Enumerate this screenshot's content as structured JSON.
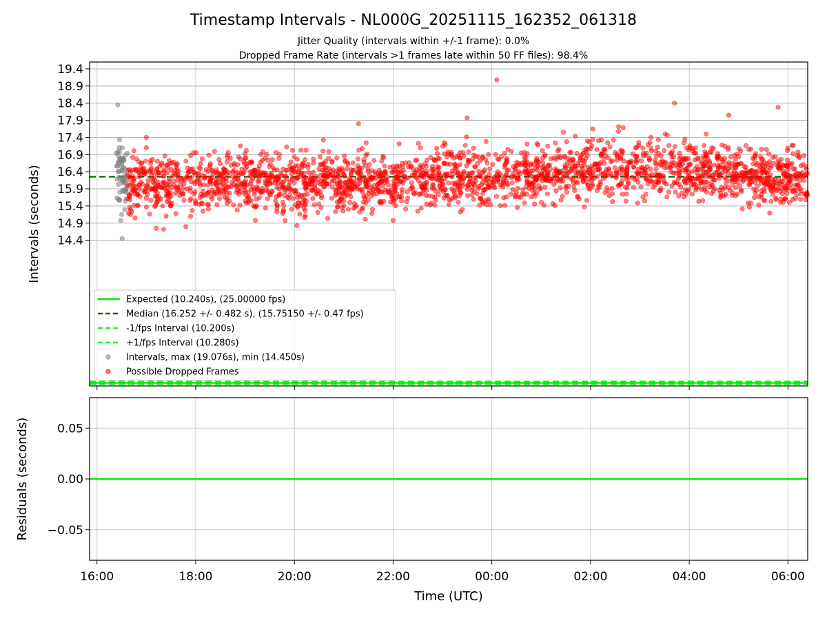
{
  "chart_data": [
    {
      "type": "scatter",
      "title": "Timestamp Intervals - NL000G_20251115_162352_061318",
      "subtitle_lines": [
        "Jitter Quality (intervals within +/-1 frame): 0.0%",
        "Dropped Frame Rate (intervals >1 frames late within 50 FF files): 98.4%"
      ],
      "xlabel": "",
      "ylabel": "Intervals (seconds)",
      "x_unit": "hours since 16:00 UTC",
      "xlim": [
        -0.15,
        14.4
      ],
      "ylim": [
        10.15,
        19.6
      ],
      "yticks": [
        14.4,
        14.9,
        15.4,
        15.9,
        16.4,
        16.9,
        17.4,
        17.9,
        18.4,
        18.9,
        19.4
      ],
      "grid": true,
      "reference_lines": {
        "expected": 10.24,
        "median": 16.252,
        "minus_one_fps": 10.2,
        "plus_one_fps": 10.28
      },
      "series": [
        {
          "name": "Intervals, max (19.076s), min (14.450s)",
          "color": "#808080",
          "x_range": [
            0.38,
            0.62
          ],
          "count": 60,
          "center": 16.3,
          "spread": 0.45,
          "extremes": [
            [
              0.42,
              18.35
            ],
            [
              0.51,
              14.45
            ],
            [
              0.48,
              14.98
            ],
            [
              0.5,
              15.15
            ]
          ]
        },
        {
          "name": "Possible Dropped Frames",
          "color": "#ff0000",
          "x_range": [
            0.62,
            14.4
          ],
          "count": 2400,
          "trend": [
            [
              0.62,
              16.05
            ],
            [
              5.0,
              16.1
            ],
            [
              8.0,
              16.25
            ],
            [
              11.0,
              16.55
            ],
            [
              12.5,
              16.45
            ],
            [
              14.4,
              16.15
            ]
          ],
          "spread": 0.42,
          "outliers": [
            [
              8.1,
              19.08
            ],
            [
              11.7,
              18.4
            ],
            [
              12.8,
              18.05
            ],
            [
              13.8,
              18.28
            ],
            [
              7.5,
              17.97
            ],
            [
              5.3,
              17.8
            ],
            [
              1.0,
              17.4
            ],
            [
              1.2,
              14.75
            ],
            [
              1.35,
              14.72
            ],
            [
              1.8,
              14.8
            ],
            [
              4.05,
              14.83
            ],
            [
              6.0,
              14.98
            ]
          ]
        }
      ],
      "legend": {
        "placement": "lower-left",
        "entries": [
          {
            "label": "Expected (10.240s), (25.00000 fps)",
            "style": "solid",
            "color": "#00ee00"
          },
          {
            "label": "Median (16.252 +/- 0.482 s), (15.75150 +/- 0.47 fps)",
            "style": "dashed",
            "color": "#006400"
          },
          {
            "label": "-1/fps Interval (10.200s)",
            "style": "dashed",
            "color": "#22ee22"
          },
          {
            "label": "+1/fps Interval (10.280s)",
            "style": "dashed",
            "color": "#22ee22"
          },
          {
            "label": "Intervals, max (19.076s), min (14.450s)",
            "style": "marker",
            "color": "#808080"
          },
          {
            "label": "Possible Dropped Frames",
            "style": "marker",
            "color": "#ff0000"
          }
        ]
      }
    },
    {
      "type": "line",
      "ylabel": "Residuals (seconds)",
      "xlabel": "Time (UTC)",
      "xlim": [
        -0.15,
        14.4
      ],
      "ylim": [
        -0.08,
        0.08
      ],
      "yticks": [
        0.05,
        0.0,
        -0.05
      ],
      "ytick_labels": [
        "0.05",
        "0.00",
        "−0.05"
      ],
      "xticks": [
        0,
        2,
        4,
        6,
        8,
        10,
        12,
        14
      ],
      "xtick_labels": [
        "16:00",
        "18:00",
        "20:00",
        "22:00",
        "00:00",
        "02:00",
        "04:00",
        "06:00"
      ],
      "grid": true,
      "series": [
        {
          "name": "",
          "color": "#00ee00",
          "x": [
            -0.15,
            14.4
          ],
          "y": [
            0.0,
            0.0
          ]
        }
      ]
    }
  ]
}
